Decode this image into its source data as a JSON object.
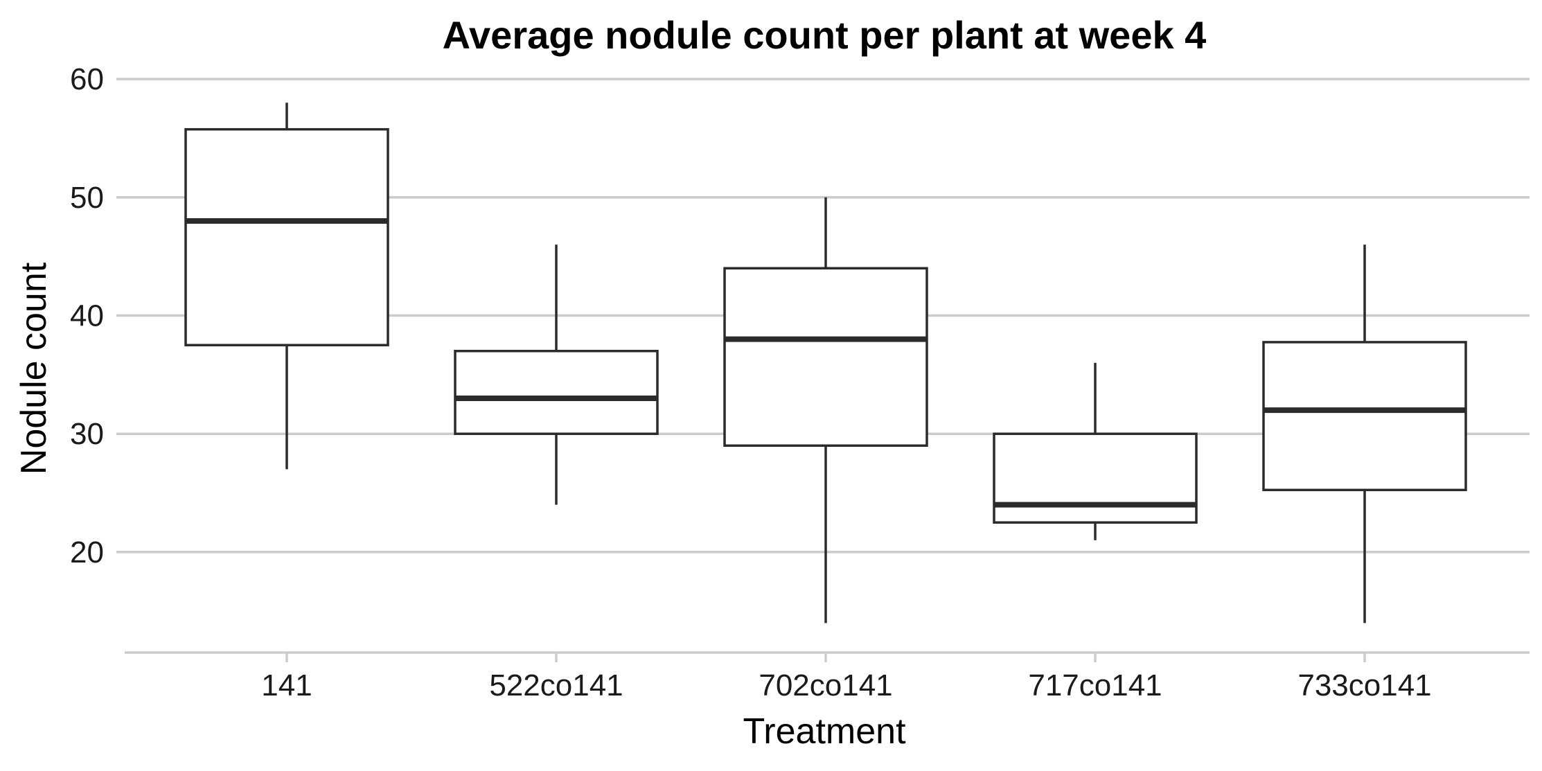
{
  "chart_data": {
    "type": "boxplot",
    "title": "Average nodule count per plant at week 4",
    "xlabel": "Treatment",
    "ylabel": "Nodule count",
    "ylim": [
      11.5,
      62
    ],
    "yticks": [
      20,
      30,
      40,
      50,
      60
    ],
    "grid": "horizontal",
    "categories": [
      "141",
      "522co141",
      "702co141",
      "717co141",
      "733co141"
    ],
    "boxes": [
      {
        "category": "141",
        "min": 27,
        "q1": 37.5,
        "median": 48,
        "q3": 55.75,
        "max": 58
      },
      {
        "category": "522co141",
        "min": 24,
        "q1": 30,
        "median": 33,
        "q3": 37,
        "max": 46
      },
      {
        "category": "702co141",
        "min": 14,
        "q1": 29,
        "median": 38,
        "q3": 44,
        "max": 50
      },
      {
        "category": "717co141",
        "min": 21,
        "q1": 22.5,
        "median": 24,
        "q3": 30,
        "max": 36
      },
      {
        "category": "733co141",
        "min": 14,
        "q1": 25.25,
        "median": 32,
        "q3": 37.75,
        "max": 46
      }
    ],
    "colors": {
      "box_fill": "#ffffff",
      "box_stroke": "#2b2b2b",
      "grid": "#cccccc"
    }
  }
}
